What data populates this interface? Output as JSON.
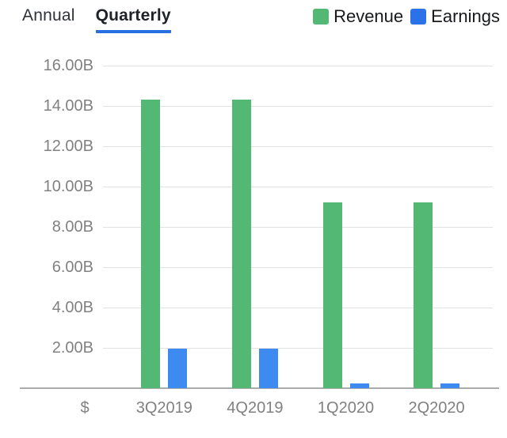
{
  "tabs": {
    "items": [
      {
        "label": "Annual",
        "active": false
      },
      {
        "label": "Quarterly",
        "active": true
      }
    ]
  },
  "legend": {
    "items": [
      {
        "label": "Revenue",
        "color": "#52b874"
      },
      {
        "label": "Earnings",
        "color": "#2b71e8"
      }
    ]
  },
  "colors": {
    "accent": "#2a6fe0",
    "revenue_bar": "#52b874",
    "earnings_bar": "#3d8af0",
    "gridline": "#e2e2e2",
    "baseline": "#ababab",
    "axis_text": "#818181"
  },
  "chart_data": {
    "type": "bar",
    "categories": [
      "3Q2019",
      "4Q2019",
      "1Q2020",
      "2Q2020"
    ],
    "series": [
      {
        "name": "Revenue",
        "color": "#52b874",
        "values": [
          14.3,
          14.3,
          9.2,
          9.2
        ]
      },
      {
        "name": "Earnings",
        "color": "#3d8af0",
        "values": [
          1.95,
          1.95,
          0.25,
          0.25
        ]
      }
    ],
    "unit": "B",
    "currency_label": "$",
    "y_ticks": [
      "16.00B",
      "14.00B",
      "12.00B",
      "10.00B",
      "8.00B",
      "6.00B",
      "4.00B",
      "2.00B"
    ],
    "ylim": [
      0,
      16
    ],
    "grid": "horizontal",
    "legend_position": "top-right",
    "title": ""
  }
}
